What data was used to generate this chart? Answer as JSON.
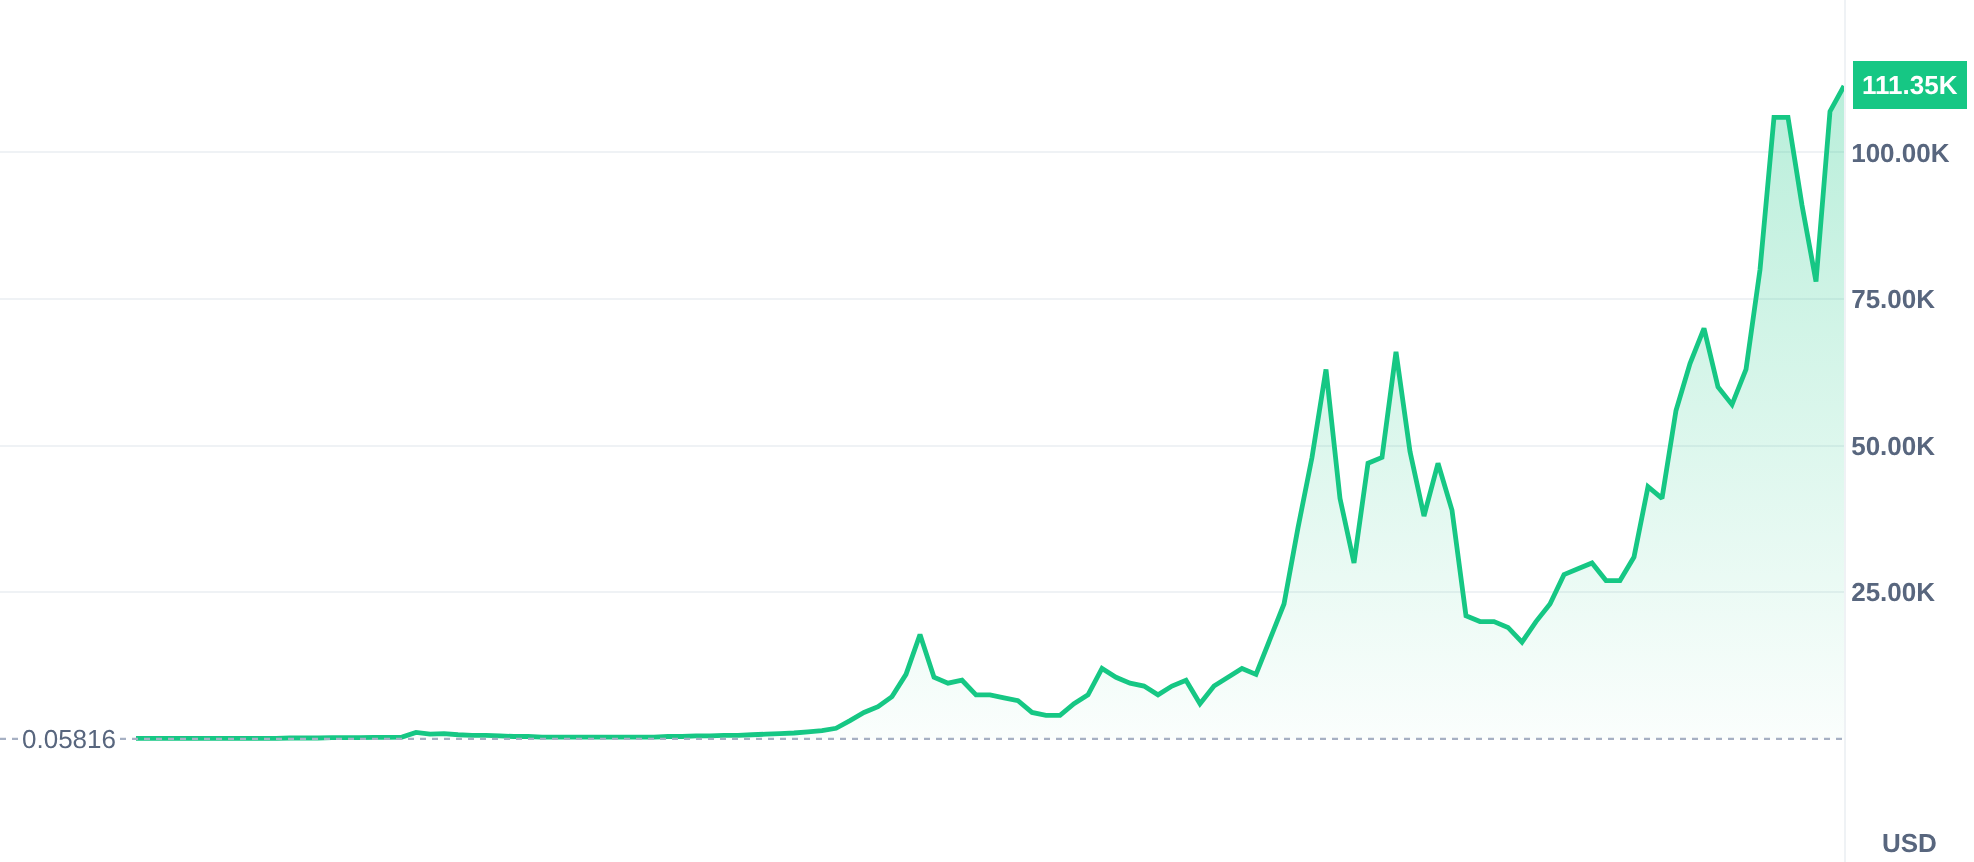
{
  "chart_data": {
    "type": "area",
    "categories": [
      null,
      null,
      null,
      null,
      null,
      null,
      null,
      null,
      null,
      null,
      null,
      null,
      null,
      null,
      null,
      null,
      null,
      null,
      null,
      null,
      null,
      null,
      null,
      null,
      null,
      null,
      null,
      null,
      null,
      null,
      null,
      null,
      null,
      null,
      null,
      null,
      null,
      null,
      null,
      null,
      null,
      null,
      null,
      null,
      null,
      null,
      null,
      null,
      null,
      null,
      null,
      null,
      null,
      null,
      null,
      null,
      null,
      null,
      null,
      null,
      null,
      null,
      null,
      null,
      null,
      null,
      null,
      null,
      null,
      null,
      null,
      null,
      null,
      null,
      null,
      null,
      null,
      null,
      null,
      null,
      null,
      null,
      null,
      null,
      null,
      null,
      null,
      null,
      null,
      null,
      null,
      null,
      null,
      null,
      null,
      null,
      null,
      null,
      null,
      null,
      null,
      null,
      null,
      null,
      null,
      null,
      null,
      null,
      null,
      null,
      null,
      null,
      null,
      null,
      null,
      null,
      null,
      null,
      null,
      null,
      null,
      null,
      null
    ],
    "series": [
      {
        "color": "#16c784",
        "value_labels": [
          null,
          null,
          null,
          null,
          null,
          null,
          null,
          null,
          null,
          null,
          null,
          null,
          null,
          null,
          null,
          null,
          null,
          null,
          null,
          null,
          null,
          null,
          null,
          null,
          null,
          null,
          null,
          null,
          null,
          null,
          null,
          null,
          null,
          null,
          null,
          null,
          null,
          null,
          null,
          null,
          null,
          null,
          null,
          null,
          null,
          null,
          null,
          null,
          null,
          null,
          null,
          null,
          null,
          null,
          null,
          null,
          null,
          null,
          null,
          null,
          null,
          null,
          null,
          null,
          null,
          null,
          null,
          null,
          null,
          null,
          null,
          null,
          null,
          null,
          null,
          null,
          null,
          null,
          null,
          null,
          null,
          null,
          null,
          null,
          null,
          null,
          null,
          null,
          null,
          null,
          null,
          null,
          null,
          null,
          null,
          null,
          null,
          null,
          null,
          null,
          null,
          null,
          null,
          null,
          null,
          null,
          null,
          null,
          null,
          null,
          null,
          null,
          null,
          null,
          null,
          null,
          null,
          null,
          null,
          null,
          null,
          null,
          "111.35K"
        ],
        "values": [
          100,
          100,
          100,
          100,
          100,
          100,
          100,
          100,
          100,
          100,
          100,
          150,
          150,
          150,
          200,
          200,
          200,
          250,
          250,
          300,
          1100,
          800,
          900,
          700,
          600,
          600,
          500,
          400,
          400,
          300,
          300,
          300,
          300,
          300,
          300,
          300,
          300,
          300,
          400,
          400,
          500,
          500,
          600,
          600,
          700,
          800,
          900,
          1000,
          1200,
          1400,
          1800,
          3100,
          4500,
          5500,
          7200,
          11000,
          17800,
          10500,
          9500,
          10000,
          7500,
          7500,
          7000,
          6500,
          4500,
          4000,
          4000,
          6000,
          7500,
          12000,
          10500,
          9500,
          9000,
          7500,
          9000,
          10000,
          6000,
          9000,
          10500,
          12000,
          11000,
          17000,
          23000,
          36000,
          48000,
          63000,
          41000,
          30000,
          47000,
          48000,
          66000,
          49000,
          38000,
          47000,
          39000,
          21000,
          20000,
          20000,
          19000,
          16500,
          20000,
          23000,
          28000,
          29000,
          30000,
          27000,
          27000,
          31000,
          43000,
          41000,
          56000,
          64000,
          70000,
          60000,
          57000,
          63000,
          80000,
          106000,
          106000,
          91000,
          78000,
          107000,
          111350
        ]
      }
    ],
    "ylim": [
      -21000,
      126000
    ],
    "yticks": [
      {
        "value": 25000,
        "label": "25.00K"
      },
      {
        "value": 50000,
        "label": "50.00K"
      },
      {
        "value": 75000,
        "label": "75.00K"
      },
      {
        "value": 100000,
        "label": "100.00K"
      }
    ],
    "grid": "y",
    "tick_labels": "y",
    "ref_lines": [
      {
        "axis": "y",
        "value": 0.05816,
        "label": "0.05816",
        "color": "#a6b0c3",
        "line_style": "dotted"
      }
    ],
    "annotations": [
      "USD"
    ]
  }
}
